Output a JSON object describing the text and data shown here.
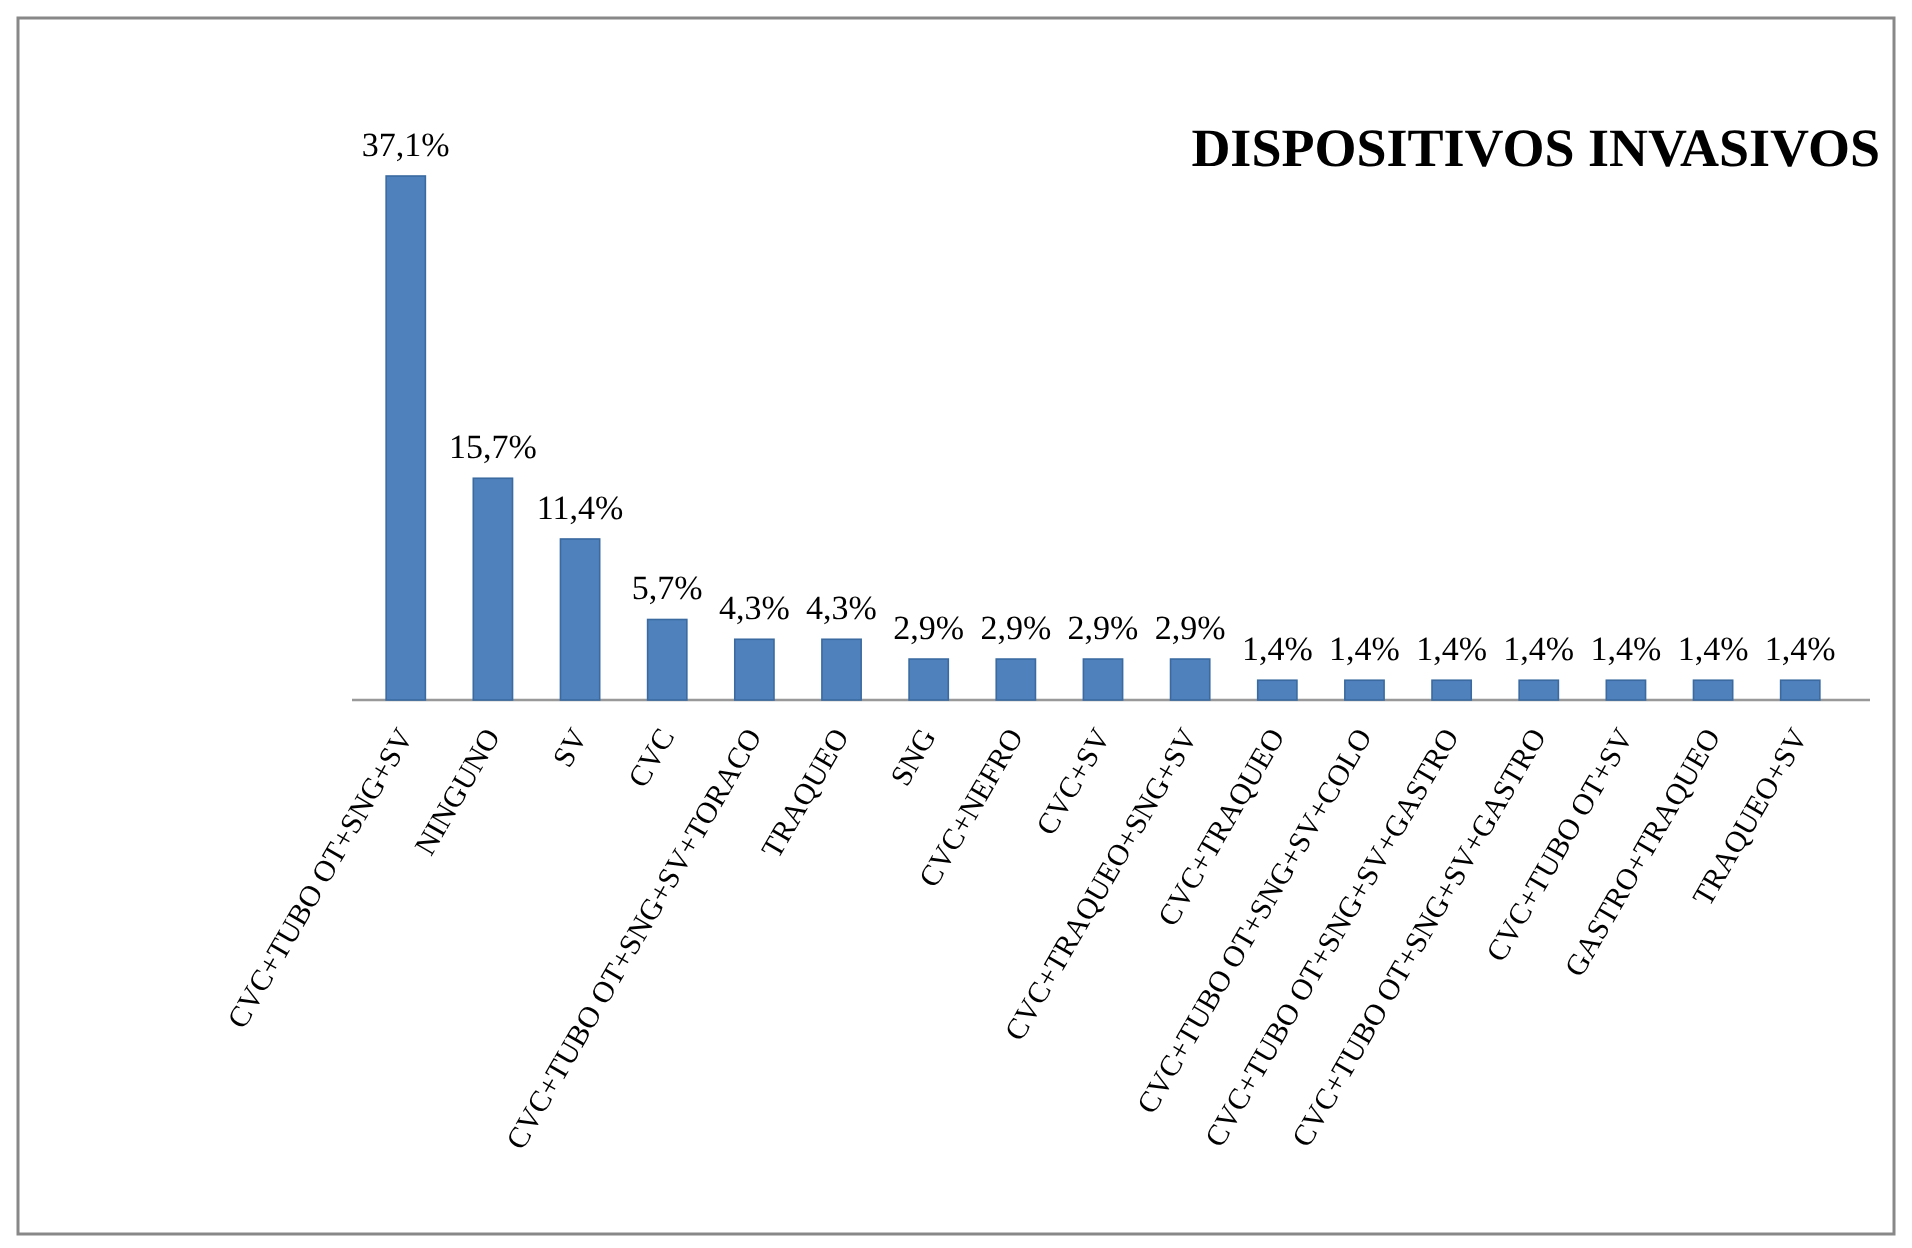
{
  "chart_data": {
    "type": "bar",
    "title": "DISPOSITIVOS INVASIVOS",
    "categories": [
      "CVC+TUBO OT+SNG+SV",
      "NINGUNO",
      "SV",
      "CVC",
      "CVC+TUBO OT+SNG+SV+TORACO",
      "TRAQUEO",
      "SNG",
      "CVC+NEFRO",
      "CVC+SV",
      "CVC+TRAQUEO+SNG+SV",
      "CVC+TRAQUEO",
      "CVC+TUBO OT+SNG+SV+COLO",
      "CVC+TUBO OT+SNG+SV+GASTRO",
      "CVC+TUBO OT+SNG+SV+GASTRO",
      "CVC+TUBO OT+SV",
      "GASTRO+TRAQUEO",
      "TRAQUEO+SV"
    ],
    "values": [
      37.1,
      15.7,
      11.4,
      5.7,
      4.3,
      4.3,
      2.9,
      2.9,
      2.9,
      2.9,
      1.4,
      1.4,
      1.4,
      1.4,
      1.4,
      1.4,
      1.4
    ],
    "value_labels": [
      "37,1%",
      "15,7%",
      "11,4%",
      "5,7%",
      "4,3%",
      "4,3%",
      "2,9%",
      "2,9%",
      "2,9%",
      "2,9%",
      "1,4%",
      "1,4%",
      "1,4%",
      "1,4%",
      "1,4%",
      "1,4%",
      "1,4%"
    ],
    "color": "#4f81bd"
  }
}
